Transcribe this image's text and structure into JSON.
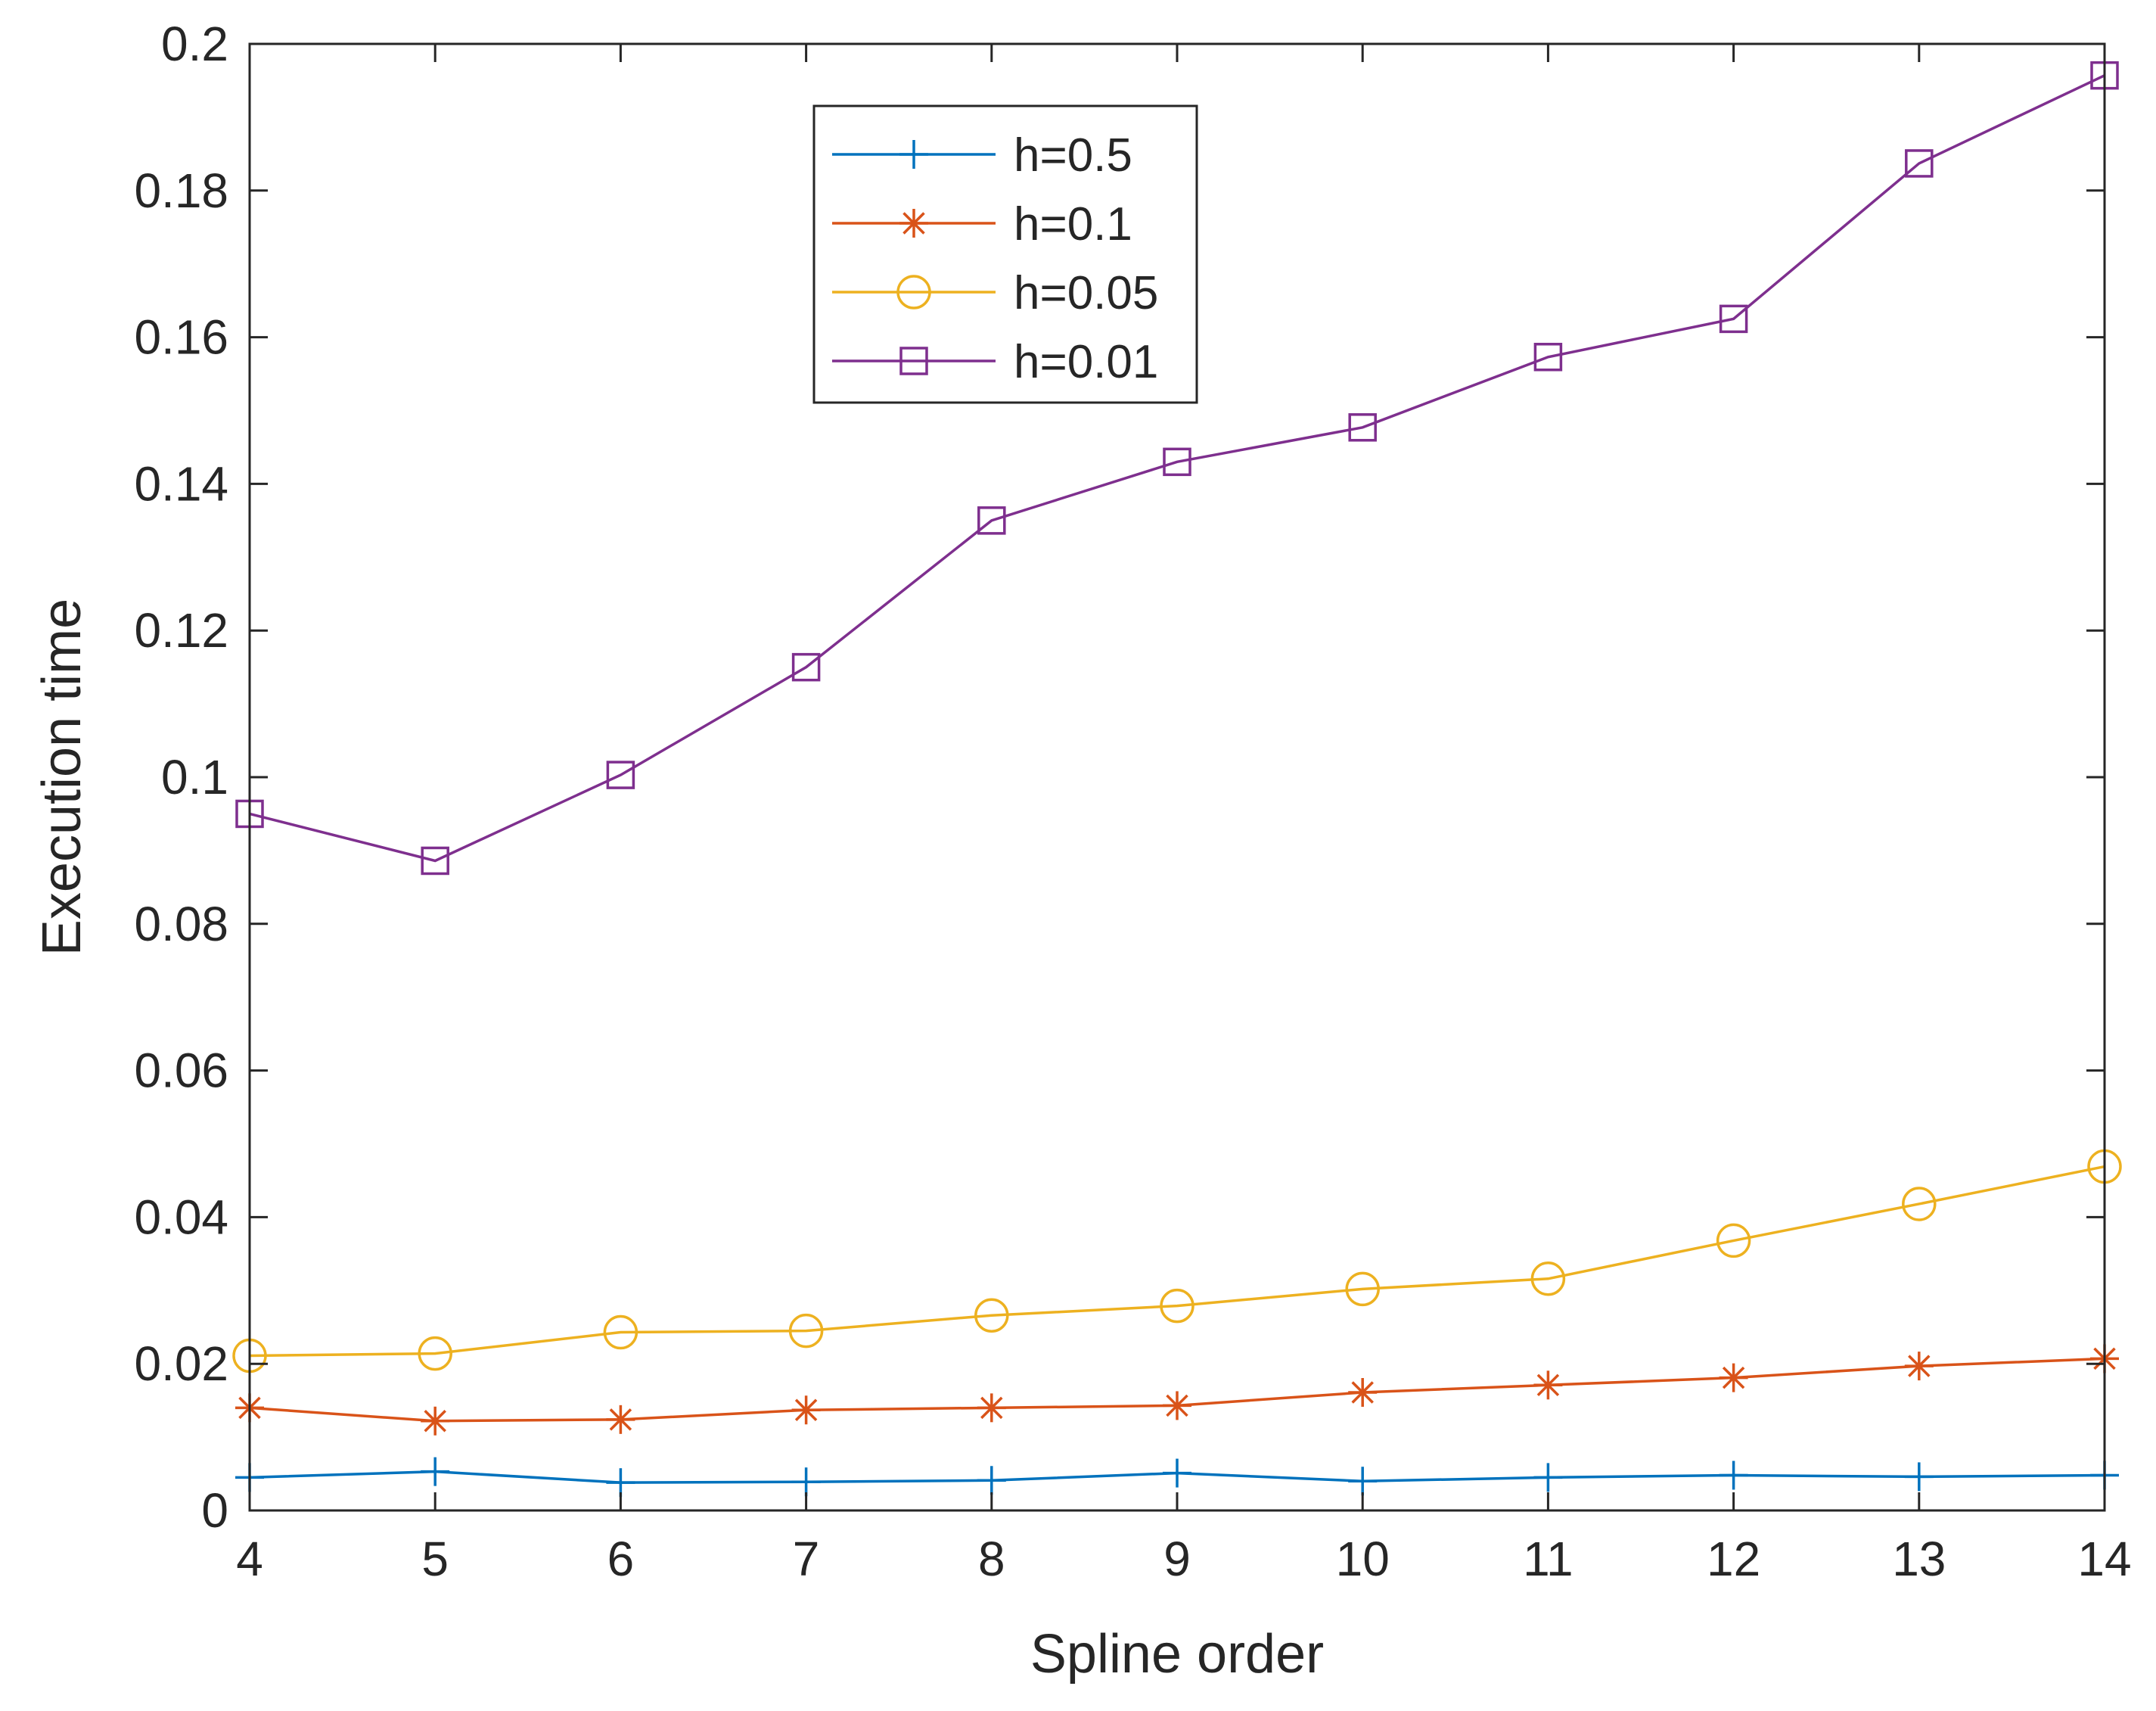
{
  "chart_data": {
    "type": "line",
    "title": "",
    "xlabel": "Spline order",
    "ylabel": "Execution time",
    "xlim": [
      4,
      14
    ],
    "ylim": [
      0,
      0.2
    ],
    "x": [
      4,
      5,
      6,
      7,
      8,
      9,
      10,
      11,
      12,
      13,
      14
    ],
    "xticks": [
      "4",
      "5",
      "6",
      "7",
      "8",
      "9",
      "10",
      "11",
      "12",
      "13",
      "14"
    ],
    "yticks": [
      "0",
      "0.02",
      "0.04",
      "0.06",
      "0.08",
      "0.1",
      "0.12",
      "0.14",
      "0.16",
      "0.18",
      "0.2"
    ],
    "legend_position": "top-center",
    "series": [
      {
        "name": "h=0.5",
        "color": "#0072BD",
        "marker": "plus",
        "values": [
          0.0045,
          0.0053,
          0.0038,
          0.0039,
          0.0041,
          0.0051,
          0.004,
          0.0045,
          0.0048,
          0.0046,
          0.0048
        ]
      },
      {
        "name": "h=0.1",
        "color": "#D95319",
        "marker": "asterisk",
        "values": [
          0.014,
          0.0122,
          0.0124,
          0.0137,
          0.014,
          0.0143,
          0.0161,
          0.0171,
          0.0181,
          0.0197,
          0.0207
        ]
      },
      {
        "name": "h=0.05",
        "color": "#EDB120",
        "marker": "circle",
        "values": [
          0.0211,
          0.0214,
          0.0243,
          0.0245,
          0.0266,
          0.0279,
          0.0302,
          0.0316,
          0.0368,
          0.0418,
          0.0469
        ]
      },
      {
        "name": "h=0.01",
        "color": "#7E2F8E",
        "marker": "square",
        "values": [
          0.095,
          0.0886,
          0.1003,
          0.115,
          0.135,
          0.143,
          0.1477,
          0.1573,
          0.1625,
          0.1837,
          0.1957
        ]
      }
    ]
  }
}
